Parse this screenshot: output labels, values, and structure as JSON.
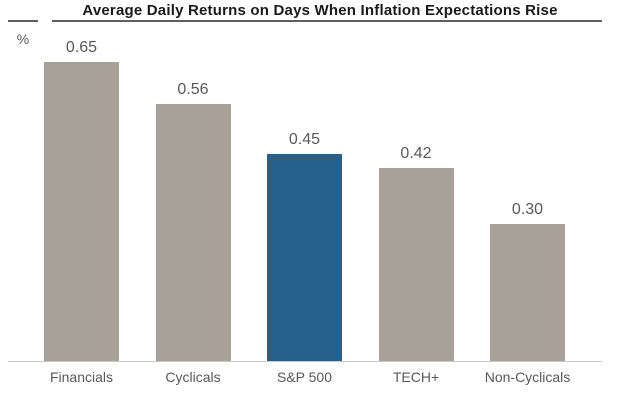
{
  "chart_data": {
    "type": "bar",
    "title": "Average Daily Returns on Days When Inflation Expectations Rise",
    "ylabel": "%",
    "xlabel": "",
    "categories": [
      "Financials",
      "Cyclicals",
      "S&P 500",
      "TECH+",
      "Non-Cyclicals"
    ],
    "values": [
      0.65,
      0.56,
      0.45,
      0.42,
      0.3
    ],
    "value_labels": [
      "0.65",
      "0.56",
      "0.45",
      "0.42",
      "0.30"
    ],
    "highlight_category": "S&P 500",
    "ylim": [
      0,
      0.7
    ],
    "grid": false,
    "legend": false,
    "colors": {
      "default_bar": "#a8a19a",
      "highlight_bar": "#26618e",
      "value_label": "#595959",
      "category_label": "#595959",
      "title": "#1a1a1a",
      "top_rule": "#5f5f5f",
      "axis_line": "#c9c9c9"
    }
  }
}
